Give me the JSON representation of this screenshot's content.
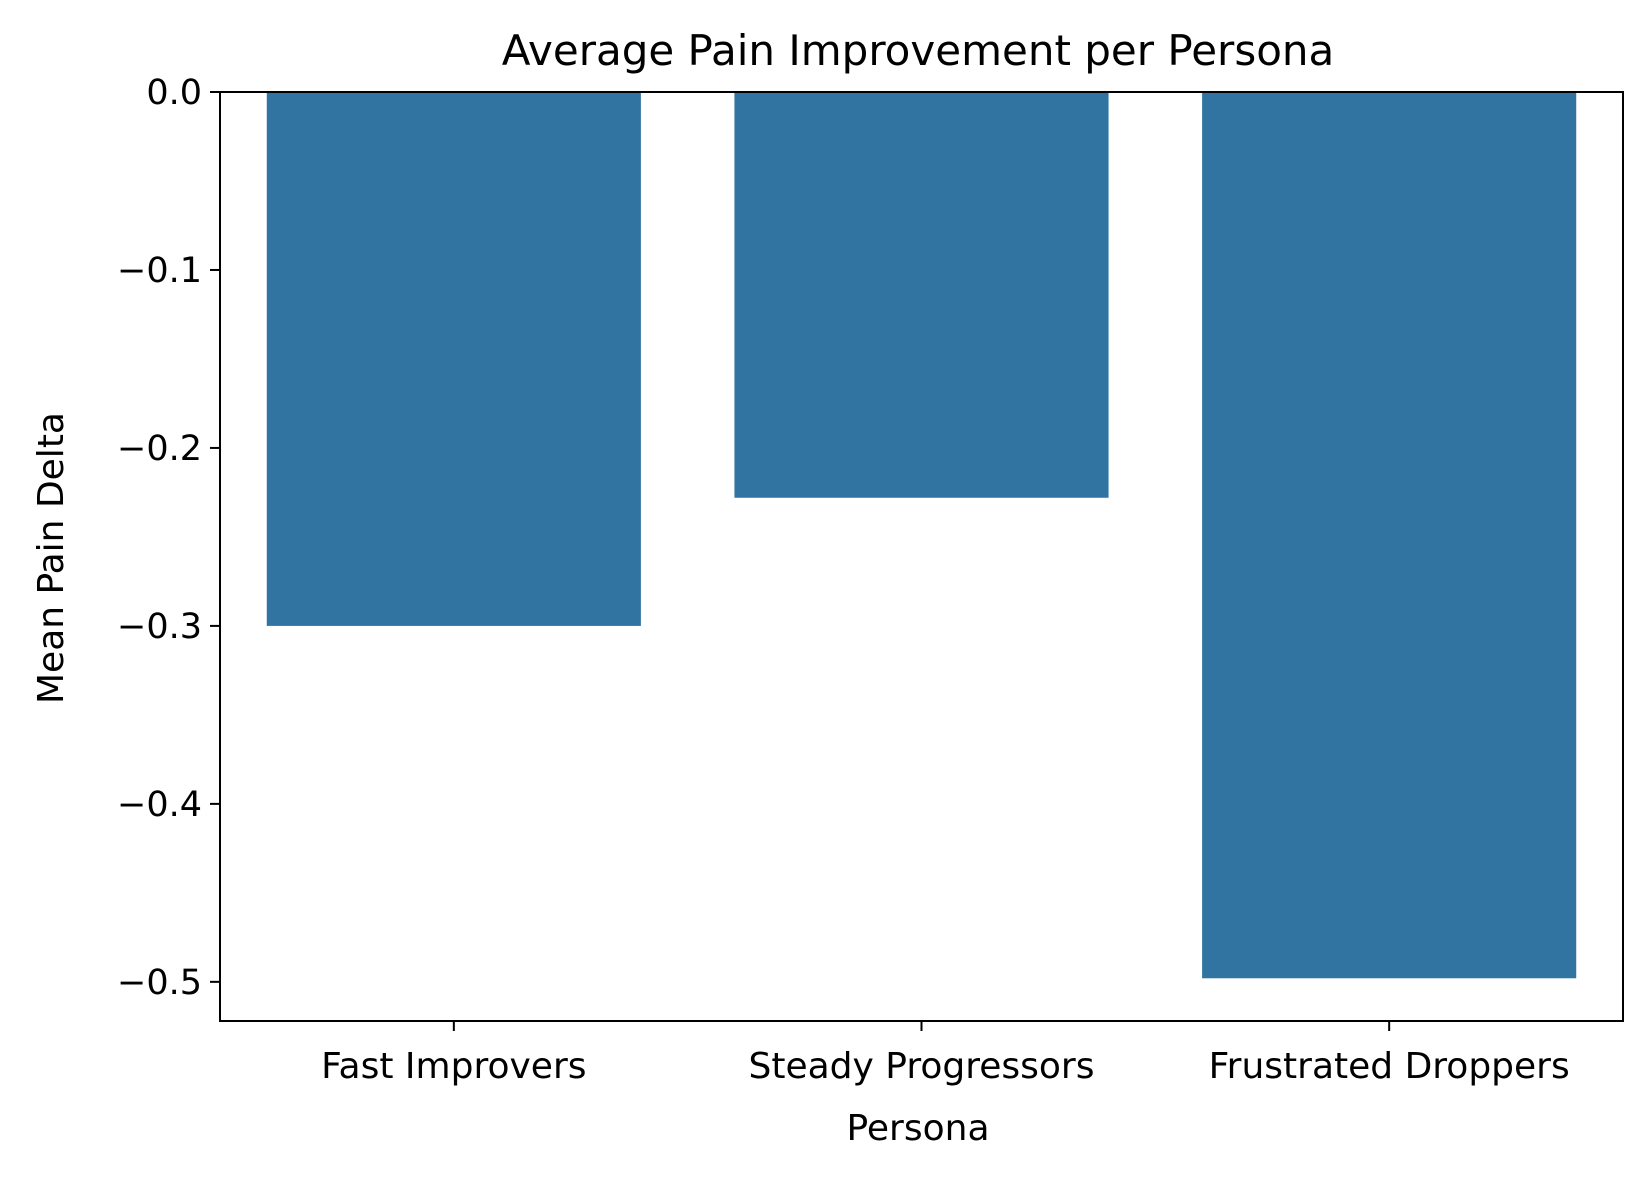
{
  "chart_data": {
    "type": "bar",
    "title": "Average Pain Improvement per Persona",
    "xlabel": "Persona",
    "ylabel": "Mean Pain Delta",
    "categories": [
      "Fast Improvers",
      "Steady Progressors",
      "Frustrated Droppers"
    ],
    "values": [
      -0.3,
      -0.228,
      -0.498
    ],
    "ylim": [
      -0.522,
      0.0
    ],
    "yticks": [
      0.0,
      -0.1,
      -0.2,
      -0.3,
      -0.4,
      -0.5
    ],
    "ytick_labels": [
      "0.0",
      "−0.1",
      "−0.2",
      "−0.3",
      "−0.4",
      "−0.5"
    ],
    "grid": false,
    "legend": "none",
    "bar_color": "#3274a1"
  }
}
